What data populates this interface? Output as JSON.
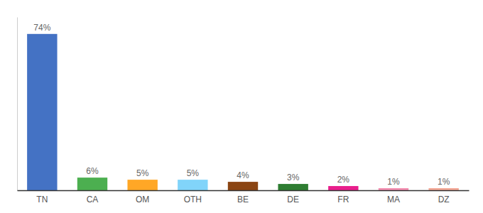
{
  "chart_data": {
    "type": "bar",
    "categories": [
      "TN",
      "CA",
      "OM",
      "OTH",
      "BE",
      "DE",
      "FR",
      "MA",
      "DZ"
    ],
    "values": [
      74,
      6,
      5,
      5,
      4,
      3,
      2,
      1,
      1
    ],
    "value_labels": [
      "74%",
      "6%",
      "5%",
      "5%",
      "4%",
      "3%",
      "2%",
      "1%",
      "1%"
    ],
    "colors": [
      "#4472c4",
      "#4caf50",
      "#ffa726",
      "#81d4fa",
      "#8b4513",
      "#2e7d32",
      "#e91e8c",
      "#f48fb1",
      "#f4a896"
    ],
    "ylim": [
      0,
      82
    ],
    "data_labels": true,
    "tick_labels": "x",
    "grid": false
  }
}
